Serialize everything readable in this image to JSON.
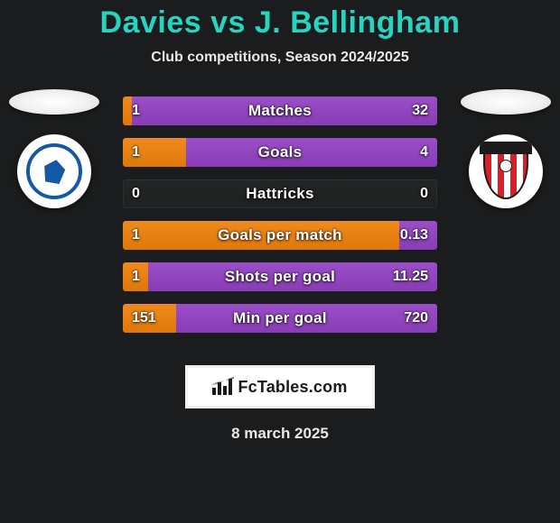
{
  "title": "Davies vs J. Bellingham",
  "subtitle": "Club competitions, Season 2024/2025",
  "title_color": "#28d3c0",
  "background_color": "#1a1c1d",
  "left_fill_color": "#f08a1d",
  "right_fill_color": "#9a4ec7",
  "player_left": {
    "name": "Davies",
    "club": "Cardiff City"
  },
  "player_right": {
    "name": "J. Bellingham",
    "club": "Sunderland"
  },
  "rows": [
    {
      "label": "Matches",
      "left": "1",
      "right": "32",
      "left_pct": 3,
      "right_pct": 97
    },
    {
      "label": "Goals",
      "left": "1",
      "right": "4",
      "left_pct": 20,
      "right_pct": 80
    },
    {
      "label": "Hattricks",
      "left": "0",
      "right": "0",
      "left_pct": 0,
      "right_pct": 0
    },
    {
      "label": "Goals per match",
      "left": "1",
      "right": "0.13",
      "left_pct": 88,
      "right_pct": 12
    },
    {
      "label": "Shots per goal",
      "left": "1",
      "right": "11.25",
      "left_pct": 8,
      "right_pct": 92
    },
    {
      "label": "Min per goal",
      "left": "151",
      "right": "720",
      "left_pct": 17,
      "right_pct": 83
    }
  ],
  "branding": "FcTables.com",
  "date": "8 march 2025"
}
